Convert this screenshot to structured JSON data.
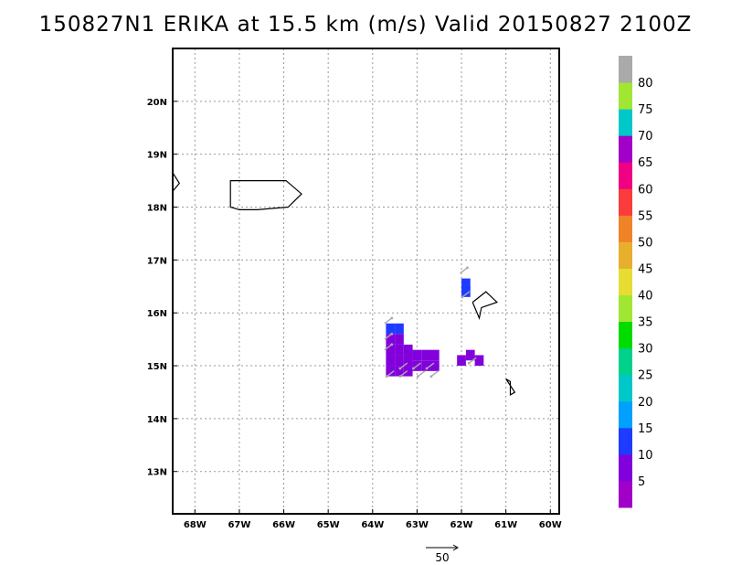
{
  "title": "150827N1 ERIKA at 15.5 km (m/s) Valid 20150827 2100Z",
  "map": {
    "lon_range": [
      -68.5,
      -59.8
    ],
    "lat_range": [
      12.2,
      21.0
    ],
    "lon_ticks": [
      {
        "value": -68,
        "label": "68W"
      },
      {
        "value": -67,
        "label": "67W"
      },
      {
        "value": -66,
        "label": "66W"
      },
      {
        "value": -65,
        "label": "65W"
      },
      {
        "value": -64,
        "label": "64W"
      },
      {
        "value": -63,
        "label": "63W"
      },
      {
        "value": -62,
        "label": "62W"
      },
      {
        "value": -61,
        "label": "61W"
      },
      {
        "value": -60,
        "label": "60W"
      }
    ],
    "lat_ticks": [
      {
        "value": 13,
        "label": "13N"
      },
      {
        "value": 14,
        "label": "14N"
      },
      {
        "value": 15,
        "label": "15N"
      },
      {
        "value": 16,
        "label": "16N"
      },
      {
        "value": 17,
        "label": "17N"
      },
      {
        "value": 18,
        "label": "18N"
      },
      {
        "value": 19,
        "label": "19N"
      },
      {
        "value": 20,
        "label": "20N"
      }
    ],
    "grid": "dotted",
    "wind_cells_deg": 0.2,
    "wind_cells": [
      {
        "lon": -63.6,
        "lat": 15.7,
        "speed": 12
      },
      {
        "lon": -63.4,
        "lat": 15.7,
        "speed": 12
      },
      {
        "lon": -63.6,
        "lat": 15.5,
        "speed": 6
      },
      {
        "lon": -63.4,
        "lat": 15.5,
        "speed": 6
      },
      {
        "lon": -63.2,
        "lat": 15.3,
        "speed": 6
      },
      {
        "lon": -63.6,
        "lat": 15.3,
        "speed": 6
      },
      {
        "lon": -63.4,
        "lat": 15.3,
        "speed": 6
      },
      {
        "lon": -63.0,
        "lat": 15.2,
        "speed": 6
      },
      {
        "lon": -62.8,
        "lat": 15.2,
        "speed": 6
      },
      {
        "lon": -62.6,
        "lat": 15.2,
        "speed": 6
      },
      {
        "lon": -63.6,
        "lat": 15.1,
        "speed": 6
      },
      {
        "lon": -63.4,
        "lat": 15.1,
        "speed": 6
      },
      {
        "lon": -63.2,
        "lat": 15.1,
        "speed": 6
      },
      {
        "lon": -63.0,
        "lat": 15.0,
        "speed": 6
      },
      {
        "lon": -62.8,
        "lat": 15.0,
        "speed": 6
      },
      {
        "lon": -62.6,
        "lat": 15.0,
        "speed": 6
      },
      {
        "lon": -63.6,
        "lat": 14.9,
        "speed": 6
      },
      {
        "lon": -63.4,
        "lat": 14.9,
        "speed": 6
      },
      {
        "lon": -63.2,
        "lat": 14.9,
        "speed": 6
      },
      {
        "lon": -61.8,
        "lat": 15.2,
        "speed": 6
      },
      {
        "lon": -62.0,
        "lat": 15.1,
        "speed": 6
      },
      {
        "lon": -61.6,
        "lat": 15.1,
        "speed": 6
      },
      {
        "lon": -61.9,
        "lat": 16.55,
        "speed": 12
      },
      {
        "lon": -61.9,
        "lat": 16.4,
        "speed": 12
      }
    ],
    "coastlines": [
      [
        [
          -66.9,
          18.5
        ],
        [
          -65.95,
          18.5
        ],
        [
          -65.6,
          18.25
        ],
        [
          -65.9,
          18.0
        ],
        [
          -66.6,
          17.95
        ],
        [
          -67.0,
          17.95
        ],
        [
          -67.2,
          18.0
        ],
        [
          -67.2,
          18.5
        ],
        [
          -66.9,
          18.5
        ]
      ],
      [
        [
          -68.5,
          18.65
        ],
        [
          -68.35,
          18.45
        ],
        [
          -68.5,
          18.3
        ]
      ],
      [
        [
          -61.75,
          16.2
        ],
        [
          -61.45,
          16.4
        ],
        [
          -61.2,
          16.2
        ],
        [
          -61.55,
          16.1
        ],
        [
          -61.6,
          15.9
        ],
        [
          -61.75,
          16.2
        ]
      ],
      [
        [
          -61.0,
          14.75
        ],
        [
          -60.8,
          14.5
        ],
        [
          -60.9,
          14.45
        ],
        [
          -60.9,
          14.7
        ],
        [
          -61.0,
          14.75
        ]
      ]
    ]
  },
  "colorbar": {
    "levels": [
      5,
      10,
      15,
      20,
      25,
      30,
      35,
      40,
      45,
      50,
      55,
      60,
      65,
      70,
      75,
      80
    ],
    "labels": [
      "5",
      "10",
      "15",
      "20",
      "25",
      "30",
      "35",
      "40",
      "45",
      "50",
      "55",
      "60",
      "65",
      "70",
      "75",
      "80"
    ],
    "colors": [
      "#a000c8",
      "#8200dc",
      "#1e3cff",
      "#00a0ff",
      "#00c8c8",
      "#00d28c",
      "#00dc00",
      "#a0e632",
      "#e6dc32",
      "#e6af2d",
      "#f08228",
      "#fa3c3c",
      "#f00082",
      "#a000c8",
      "#00c8c8",
      "#a0e632",
      "#aaaaaa"
    ]
  },
  "vector_reference": {
    "label": "50"
  }
}
